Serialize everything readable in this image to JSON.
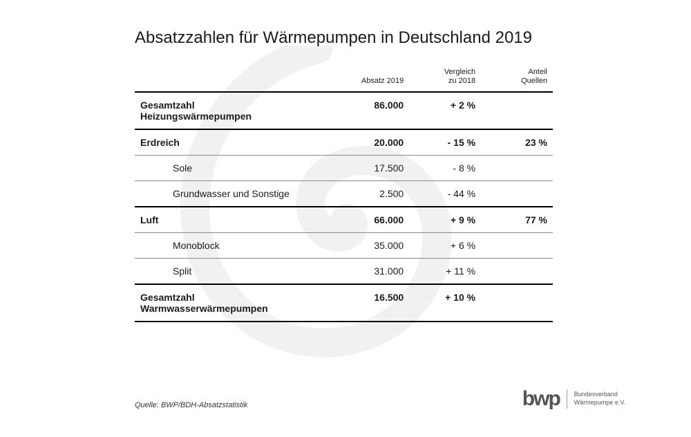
{
  "title": "Absatzzahlen für Wärmepumpen in Deutschland 2019",
  "headers": {
    "absatz": "Absatz 2019",
    "vergleich": "Vergleich\nzu 2018",
    "anteil": "Anteil\nQuellen"
  },
  "rows": [
    {
      "type": "section",
      "label": "Gesamtzahl\nHeizungswärmepumpen",
      "absatz": "86.000",
      "vergleich": "+ 2 %",
      "anteil": ""
    },
    {
      "type": "section",
      "label": "Erdreich",
      "absatz": "20.000",
      "vergleich": "- 15 %",
      "anteil": "23 %"
    },
    {
      "type": "sub",
      "label": "Sole",
      "absatz": "17.500",
      "vergleich": "- 8 %",
      "anteil": ""
    },
    {
      "type": "sub",
      "label": "Grundwasser und Sonstige",
      "absatz": "2.500",
      "vergleich": "- 44 %",
      "anteil": ""
    },
    {
      "type": "section",
      "label": "Luft",
      "absatz": "66.000",
      "vergleich": "+ 9 %",
      "anteil": "77 %"
    },
    {
      "type": "sub",
      "label": "Monoblock",
      "absatz": "35.000",
      "vergleich": "+ 6 %",
      "anteil": ""
    },
    {
      "type": "sub",
      "label": "Split",
      "absatz": "31.000",
      "vergleich": "+ 11 %",
      "anteil": ""
    },
    {
      "type": "section",
      "label": "Gesamtzahl\nWarmwasserwärmepumpen",
      "absatz": "16.500",
      "vergleich": "+ 10 %",
      "anteil": "",
      "last": true
    }
  ],
  "source": "Quelle: BWP/BDH-Absatzstatistik",
  "logo": {
    "main": "bwp",
    "line1": "Bundesverband",
    "line2": "Wärmepumpe e.V."
  },
  "styling": {
    "page_bg": "#ffffff",
    "text_color": "#1a1a1a",
    "title_fontsize": 24,
    "body_fontsize": 14,
    "header_fontsize": 11,
    "source_fontsize": 11,
    "border_thick": "#000000",
    "border_thin": "#888888",
    "watermark_color": "#555555",
    "watermark_opacity": 0.08,
    "logo_color": "#555555"
  }
}
